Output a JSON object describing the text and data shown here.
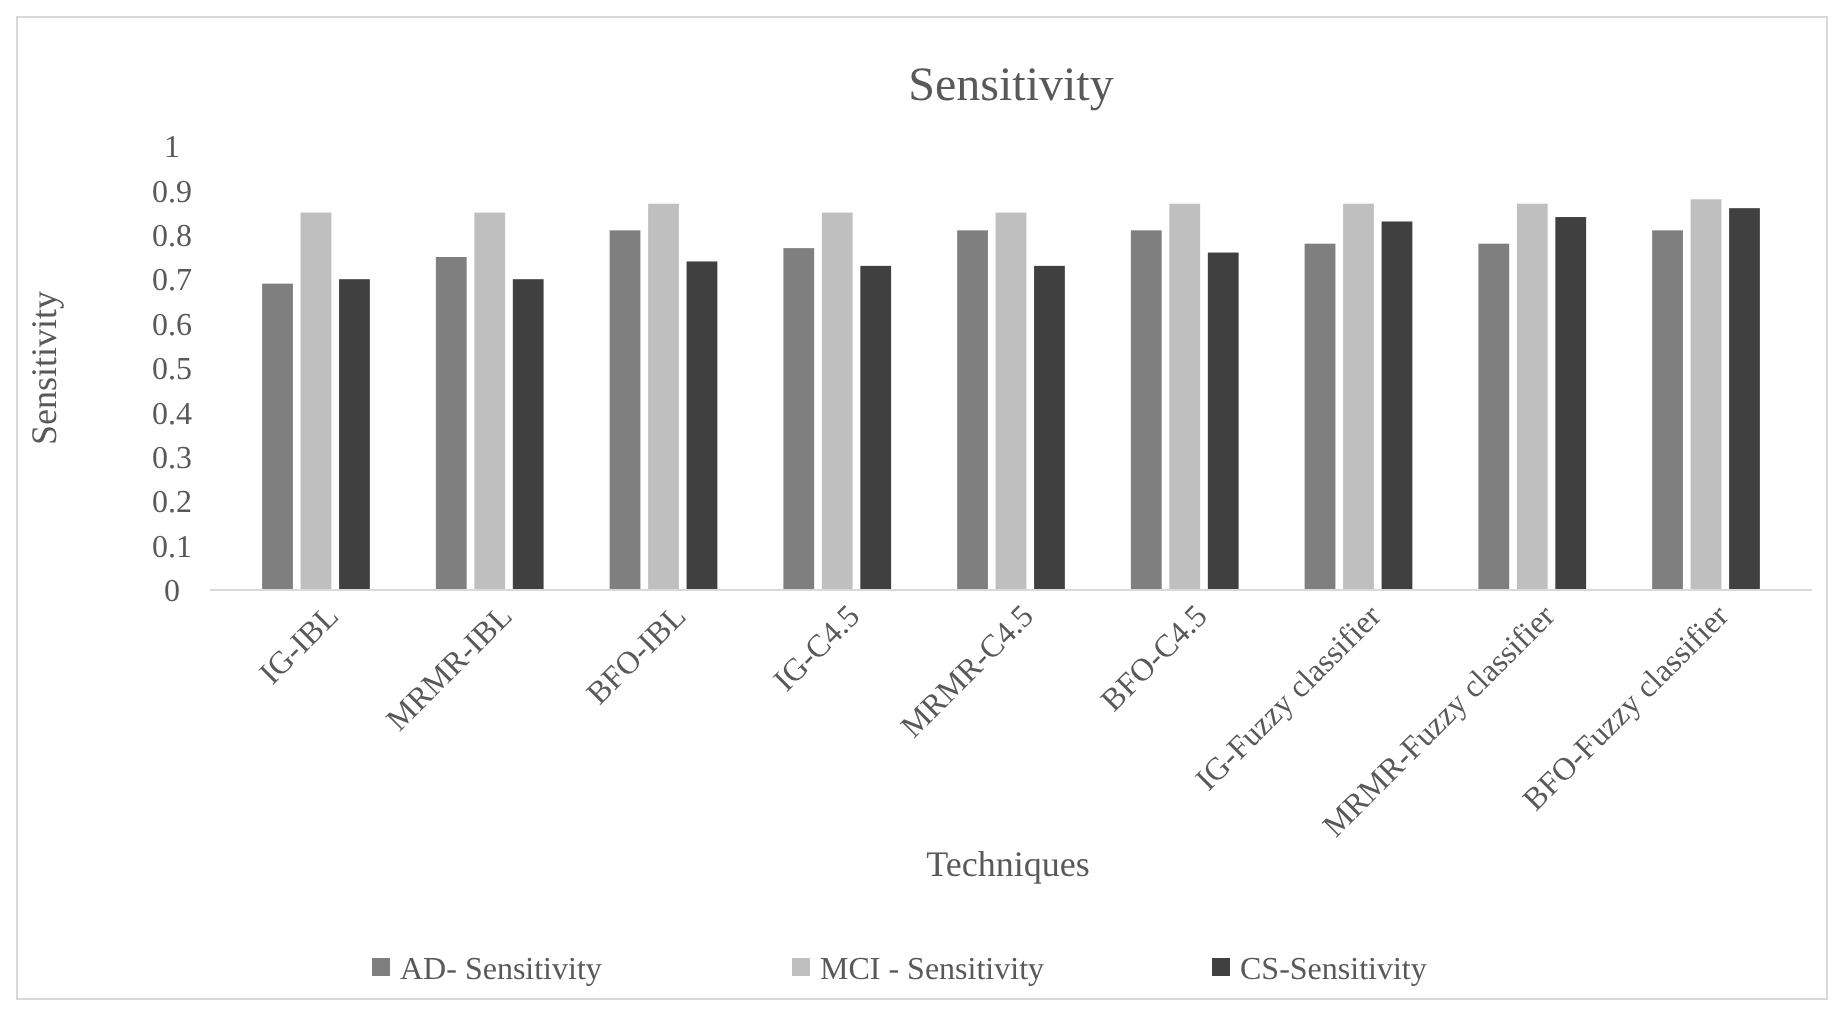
{
  "chart_data": {
    "type": "bar",
    "title": "Sensitivity",
    "xlabel": "Techniques",
    "ylabel": "Sensitivity",
    "categories": [
      "IG-IBL",
      "MRMR-IBL",
      "BFO-IBL",
      "IG-C4.5",
      "MRMR-C4.5",
      "BFO-C4.5",
      "IG-Fuzzy classifier",
      "MRMR-Fuzzy classifier",
      "BFO-Fuzzy classifier"
    ],
    "series": [
      {
        "name": "AD- Sensitivity",
        "color": "#7f7f7f",
        "values": [
          0.69,
          0.75,
          0.81,
          0.77,
          0.81,
          0.81,
          0.78,
          0.78,
          0.81
        ]
      },
      {
        "name": "MCI - Sensitivity",
        "color": "#bfbfbf",
        "values": [
          0.85,
          0.85,
          0.87,
          0.85,
          0.85,
          0.87,
          0.87,
          0.87,
          0.88
        ]
      },
      {
        "name": "CS-Sensitivity",
        "color": "#404040",
        "values": [
          0.7,
          0.7,
          0.74,
          0.73,
          0.73,
          0.76,
          0.83,
          0.84,
          0.86
        ]
      }
    ],
    "ylim": [
      0,
      1
    ],
    "yticks": [
      0,
      0.1,
      0.2,
      0.3,
      0.4,
      0.5,
      0.6,
      0.7,
      0.8,
      0.9,
      1
    ],
    "grid": false,
    "legend": "bottom"
  }
}
